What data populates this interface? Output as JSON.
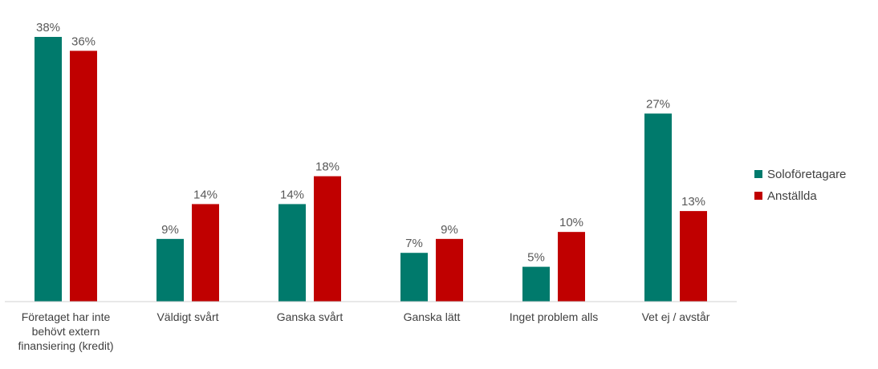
{
  "chart_data": {
    "type": "bar",
    "categories": [
      "Företaget har inte behövt extern finansiering (kredit)",
      "Väldigt svårt",
      "Ganska svårt",
      "Ganska lätt",
      "Inget problem alls",
      "Vet ej / avstår"
    ],
    "category_lines": [
      [
        "Företaget har inte",
        "behövt extern",
        "finansiering (kredit)"
      ],
      [
        "Väldigt svårt"
      ],
      [
        "Ganska svårt"
      ],
      [
        "Ganska lätt"
      ],
      [
        "Inget problem alls"
      ],
      [
        "Vet ej / avstår"
      ]
    ],
    "series": [
      {
        "name": "Soloföretagare",
        "color": "#007a6c",
        "values": [
          38,
          9,
          14,
          7,
          5,
          27
        ],
        "labels": [
          "38%",
          "9%",
          "14%",
          "7%",
          "5%",
          "27%"
        ]
      },
      {
        "name": "Anställda",
        "color": "#c00000",
        "values": [
          36,
          14,
          18,
          9,
          10,
          13
        ],
        "labels": [
          "36%",
          "14%",
          "18%",
          "9%",
          "10%",
          "13%"
        ]
      }
    ],
    "ylim": [
      0,
      38
    ],
    "value_suffix": "%",
    "legend_position": "right",
    "grid": false
  }
}
